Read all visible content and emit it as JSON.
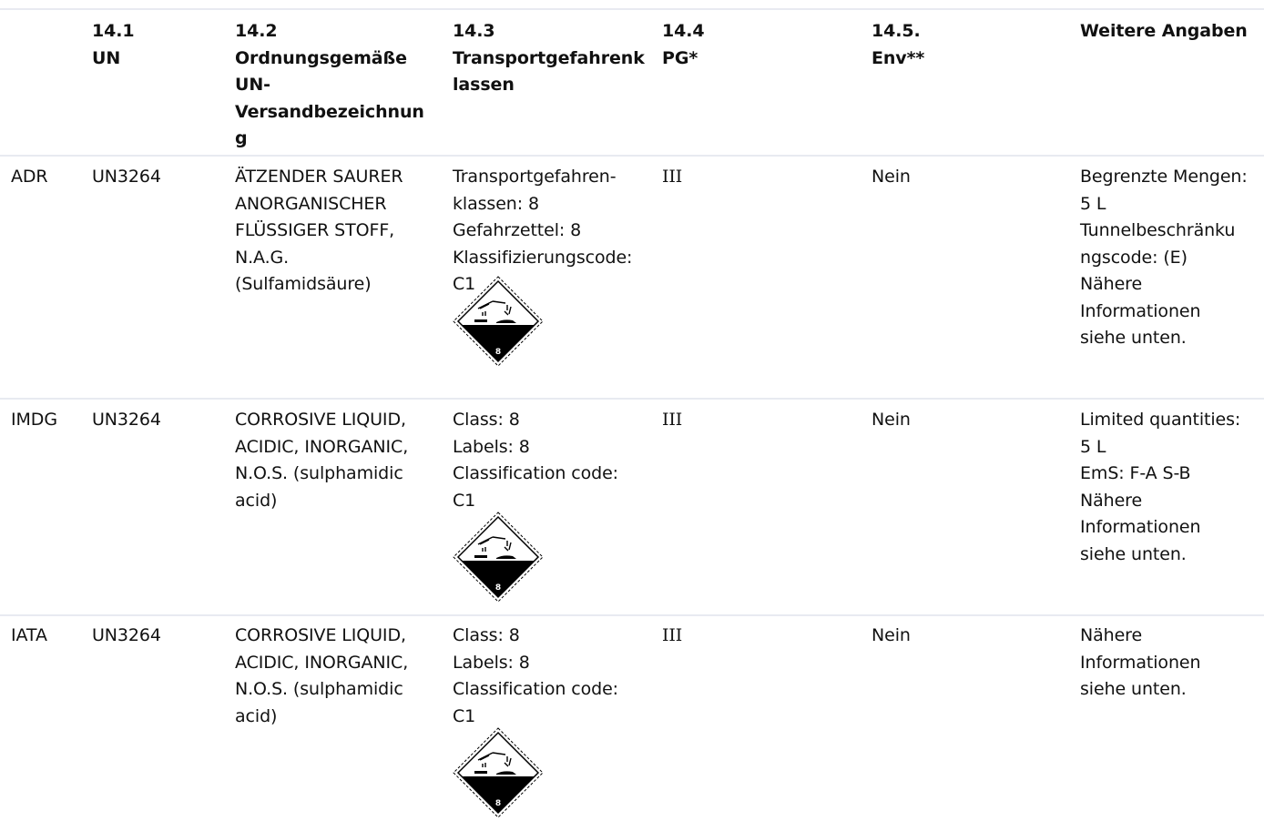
{
  "header": {
    "col_mode": "",
    "col_un": "14.1\nUN",
    "col_name": "14.2\nOrdnungsgemäße\nUN-\nVersandbezeichnun\ng",
    "col_class": "14.3\nTransportgefahrenk\nlassen",
    "col_pg": "14.4\nPG*",
    "col_env": "14.5.\nEnv**",
    "col_more": "Weitere Angaben"
  },
  "rows": [
    {
      "mode": "ADR",
      "un": "UN3264",
      "name": "ÄTZENDER SAURER\nANORGANISCHER\nFLÜSSIGER STOFF,\nN.A.G.\n(Sulfamidsäure)",
      "class_info": "Transportgefahren-\nklassen: 8\nGefahrzettel: 8\nKlassifizierungscode:\nC1",
      "placard_number": "8",
      "pg": "III",
      "env": "Nein",
      "more": "Begrenzte Mengen:\n5 L\nTunnelbeschränku\nngscode: (E)\nNähere\nInformationen\nsiehe unten."
    },
    {
      "mode": "IMDG",
      "un": "UN3264",
      "name": "CORROSIVE LIQUID,\nACIDIC, INORGANIC,\nN.O.S. (sulphamidic\nacid)",
      "class_info": "Class: 8\nLabels: 8\nClassification code:\nC1",
      "placard_number": "8",
      "pg": "III",
      "env": "Nein",
      "more": "Limited quantities:\n5 L\nEmS: F-A S-B\nNähere\nInformationen\nsiehe unten."
    },
    {
      "mode": "IATA",
      "un": "UN3264",
      "name": "CORROSIVE LIQUID,\nACIDIC, INORGANIC,\nN.O.S. (sulphamidic\nacid)",
      "class_info": "Class: 8\nLabels: 8\nClassification code:\nC1",
      "placard_number": "8",
      "pg": "III",
      "env": "Nein",
      "more": "Nähere\nInformationen\nsiehe unten."
    }
  ],
  "icons": {
    "placard": "corrosive-class-8-placard-icon"
  },
  "colors": {
    "rule": "#e8eaf1",
    "text": "#111111"
  }
}
